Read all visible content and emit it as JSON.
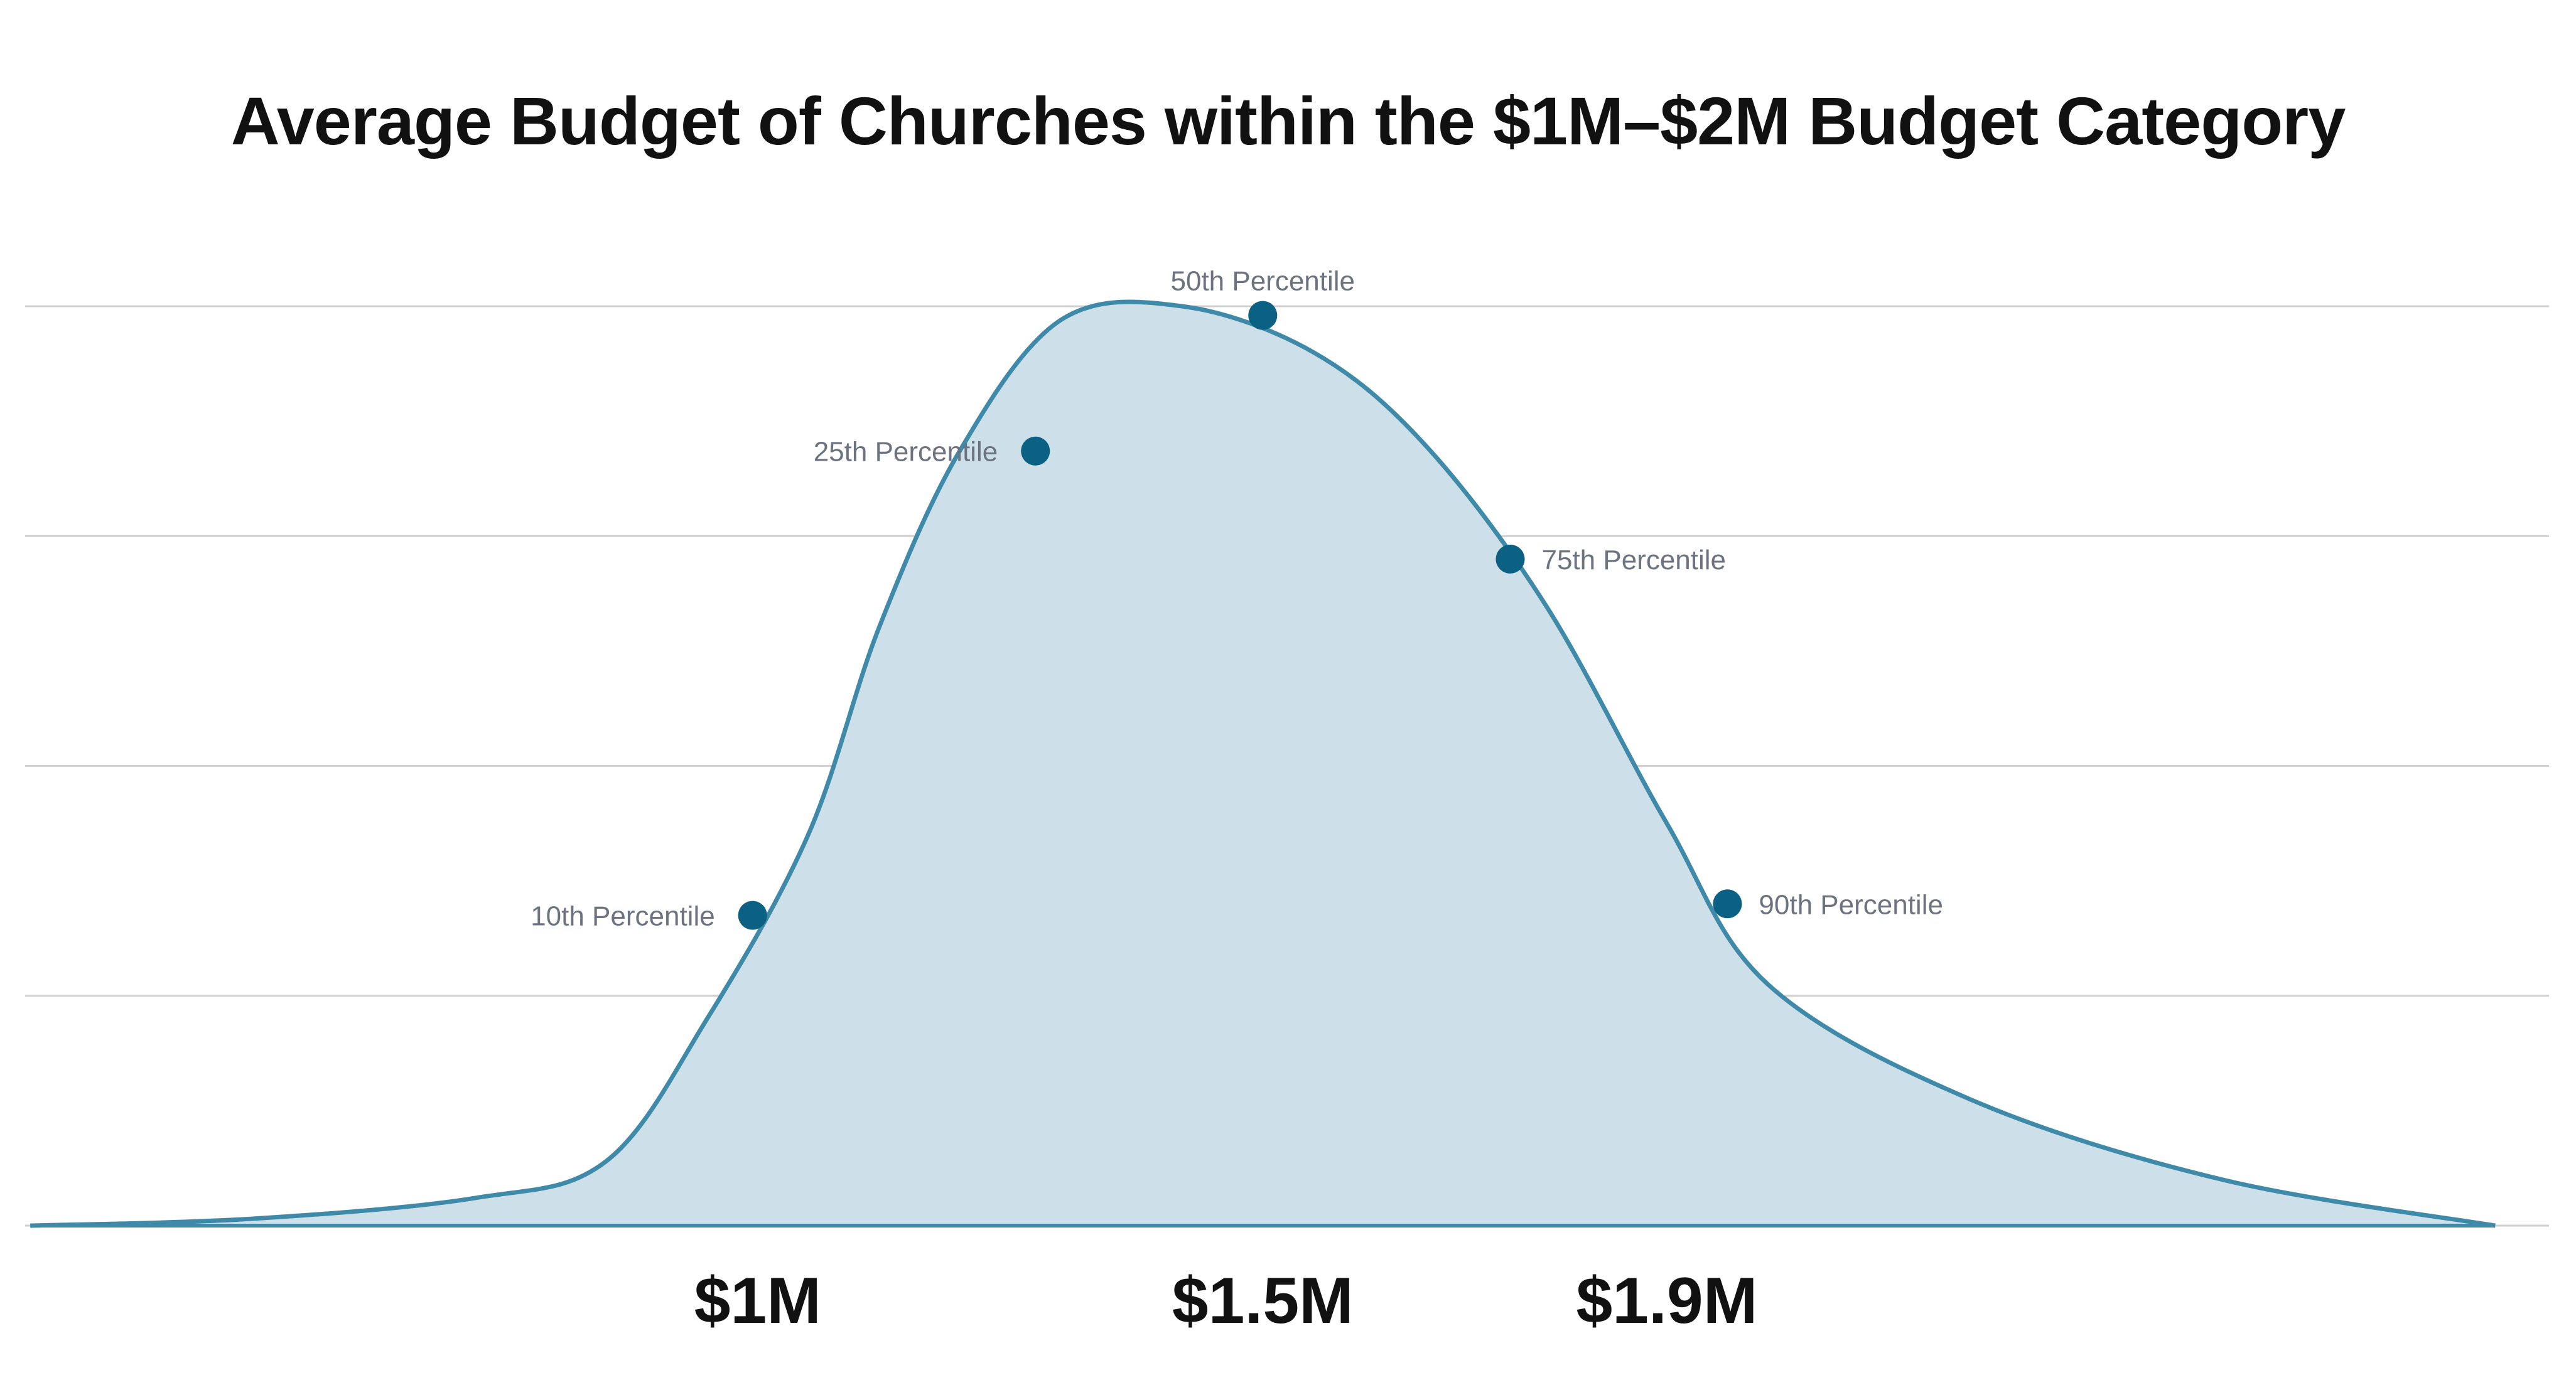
{
  "chart_data": {
    "type": "area",
    "title": "Average Budget of Churches within the $1M–$2M Budget Category",
    "xlabel": "",
    "ylabel": "",
    "x_ticks": [
      {
        "label": "$1M",
        "value": 1.0
      },
      {
        "label": "$1.5M",
        "value": 1.5
      },
      {
        "label": "$1.9M",
        "value": 1.9
      }
    ],
    "xlim": [
      0.25,
      2.8
    ],
    "ylim": [
      0,
      4
    ],
    "grid": true,
    "curve": [
      {
        "x": 0.28,
        "y": 0.0
      },
      {
        "x": 0.5,
        "y": 0.03
      },
      {
        "x": 0.72,
        "y": 0.12
      },
      {
        "x": 0.85,
        "y": 0.28
      },
      {
        "x": 0.95,
        "y": 0.9
      },
      {
        "x": 1.05,
        "y": 1.7
      },
      {
        "x": 1.12,
        "y": 2.6
      },
      {
        "x": 1.2,
        "y": 3.37
      },
      {
        "x": 1.3,
        "y": 3.94
      },
      {
        "x": 1.42,
        "y": 4.0
      },
      {
        "x": 1.55,
        "y": 3.8
      },
      {
        "x": 1.66,
        "y": 3.4
      },
      {
        "x": 1.78,
        "y": 2.7
      },
      {
        "x": 1.9,
        "y": 1.75
      },
      {
        "x": 2.0,
        "y": 1.05
      },
      {
        "x": 2.2,
        "y": 0.55
      },
      {
        "x": 2.45,
        "y": 0.2
      },
      {
        "x": 2.72,
        "y": 0.0
      }
    ],
    "points": [
      {
        "label": "10th Percentile",
        "x": 0.995,
        "y": 1.35,
        "label_side": "left"
      },
      {
        "label": "25th Percentile",
        "x": 1.275,
        "y": 3.37,
        "label_side": "left"
      },
      {
        "label": "50th Percentile",
        "x": 1.5,
        "y": 3.96,
        "label_side": "top"
      },
      {
        "label": "75th  Percentile",
        "x": 1.745,
        "y": 2.9,
        "label_side": "right"
      },
      {
        "label": "90th Percentile",
        "x": 1.96,
        "y": 1.4,
        "label_side": "right"
      }
    ],
    "colors": {
      "line": "#3f8aa8",
      "fill": "#cde0e9",
      "marker": "#0a6183",
      "grid": "#cfcfcf"
    }
  }
}
